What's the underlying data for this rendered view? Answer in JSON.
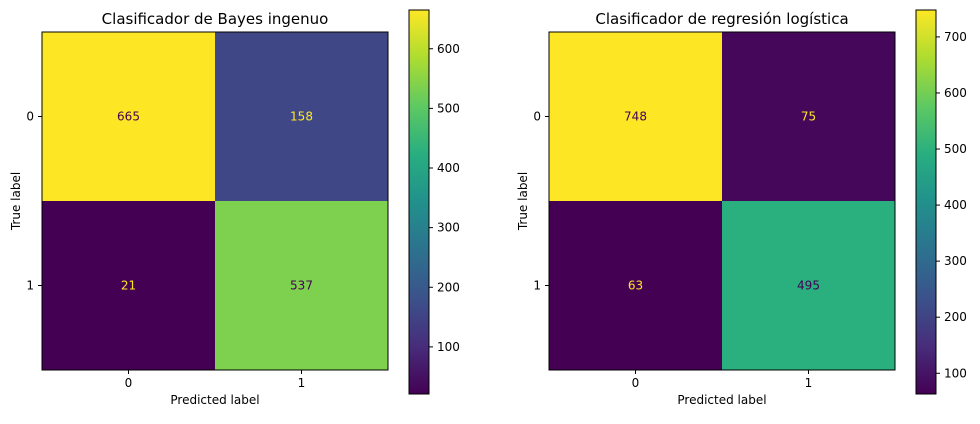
{
  "chart_data": [
    {
      "type": "heatmap",
      "title": "Clasificador de Bayes ingenuo",
      "xlabel": "Predicted label",
      "ylabel": "True label",
      "x_categories": [
        "0",
        "1"
      ],
      "y_categories": [
        "0",
        "1"
      ],
      "values": [
        [
          665,
          158
        ],
        [
          21,
          537
        ]
      ],
      "colormap": "viridis",
      "colorbar": {
        "min": 21,
        "max": 665,
        "ticks": [
          100,
          200,
          300,
          400,
          500,
          600
        ]
      }
    },
    {
      "type": "heatmap",
      "title": "Clasificador de regresión logística",
      "xlabel": "Predicted label",
      "ylabel": "True label",
      "x_categories": [
        "0",
        "1"
      ],
      "y_categories": [
        "0",
        "1"
      ],
      "values": [
        [
          748,
          75
        ],
        [
          63,
          495
        ]
      ],
      "colormap": "viridis",
      "colorbar": {
        "min": 63,
        "max": 748,
        "ticks": [
          100,
          200,
          300,
          400,
          500,
          600,
          700
        ]
      }
    }
  ]
}
